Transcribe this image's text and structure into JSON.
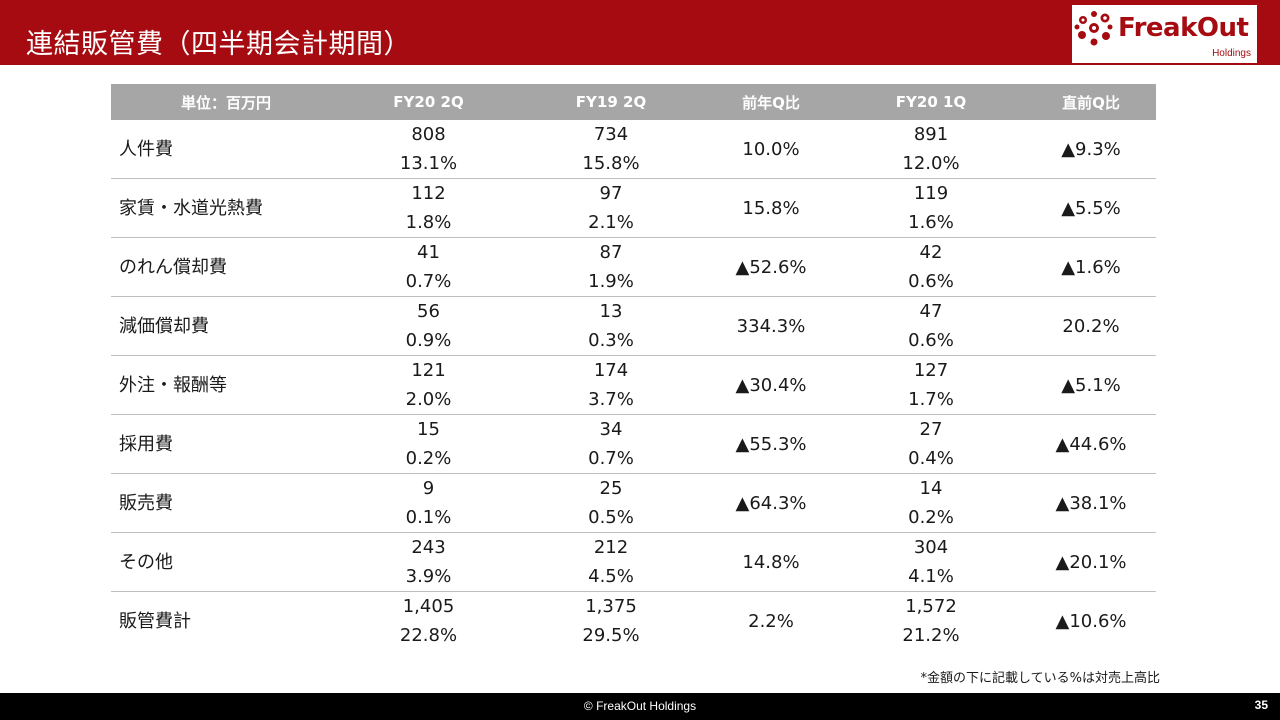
{
  "slide": {
    "title": "連結販管費（四半期会計期間）",
    "logo_text": "FreakOut",
    "logo_sub": "Holdings",
    "note": "*金額の下に記載している%は対売上高比",
    "copyright": "© FreakOut Holdings",
    "page_number": "35"
  },
  "colors": {
    "header_bg": "#a50b10",
    "table_header_bg": "#a6a6a6",
    "footer_bg": "#000000"
  },
  "table": {
    "headers": [
      "単位：百万円",
      "FY20 2Q",
      "FY19 2Q",
      "前年Q比",
      "FY20 1Q",
      "直前Q比"
    ],
    "rows": [
      {
        "label": "人件費",
        "fy20_2q": {
          "value": "808",
          "pct": "13.1%"
        },
        "fy19_2q": {
          "value": "734",
          "pct": "15.8%"
        },
        "yoy": "10.0%",
        "fy20_1q": {
          "value": "891",
          "pct": "12.0%"
        },
        "qoq": "▲9.3%"
      },
      {
        "label": "家賃・水道光熱費",
        "fy20_2q": {
          "value": "112",
          "pct": "1.8%"
        },
        "fy19_2q": {
          "value": "97",
          "pct": "2.1%"
        },
        "yoy": "15.8%",
        "fy20_1q": {
          "value": "119",
          "pct": "1.6%"
        },
        "qoq": "▲5.5%"
      },
      {
        "label": "のれん償却費",
        "fy20_2q": {
          "value": "41",
          "pct": "0.7%"
        },
        "fy19_2q": {
          "value": "87",
          "pct": "1.9%"
        },
        "yoy": "▲52.6%",
        "fy20_1q": {
          "value": "42",
          "pct": "0.6%"
        },
        "qoq": "▲1.6%"
      },
      {
        "label": "減価償却費",
        "fy20_2q": {
          "value": "56",
          "pct": "0.9%"
        },
        "fy19_2q": {
          "value": "13",
          "pct": "0.3%"
        },
        "yoy": "334.3%",
        "fy20_1q": {
          "value": "47",
          "pct": "0.6%"
        },
        "qoq": "20.2%"
      },
      {
        "label": "外注・報酬等",
        "fy20_2q": {
          "value": "121",
          "pct": "2.0%"
        },
        "fy19_2q": {
          "value": "174",
          "pct": "3.7%"
        },
        "yoy": "▲30.4%",
        "fy20_1q": {
          "value": "127",
          "pct": "1.7%"
        },
        "qoq": "▲5.1%"
      },
      {
        "label": "採用費",
        "fy20_2q": {
          "value": "15",
          "pct": "0.2%"
        },
        "fy19_2q": {
          "value": "34",
          "pct": "0.7%"
        },
        "yoy": "▲55.3%",
        "fy20_1q": {
          "value": "27",
          "pct": "0.4%"
        },
        "qoq": "▲44.6%"
      },
      {
        "label": "販売費",
        "fy20_2q": {
          "value": "9",
          "pct": "0.1%"
        },
        "fy19_2q": {
          "value": "25",
          "pct": "0.5%"
        },
        "yoy": "▲64.3%",
        "fy20_1q": {
          "value": "14",
          "pct": "0.2%"
        },
        "qoq": "▲38.1%"
      },
      {
        "label": "その他",
        "fy20_2q": {
          "value": "243",
          "pct": "3.9%"
        },
        "fy19_2q": {
          "value": "212",
          "pct": "4.5%"
        },
        "yoy": "14.8%",
        "fy20_1q": {
          "value": "304",
          "pct": "4.1%"
        },
        "qoq": "▲20.1%"
      },
      {
        "label": "販管費計",
        "fy20_2q": {
          "value": "1,405",
          "pct": "22.8%"
        },
        "fy19_2q": {
          "value": "1,375",
          "pct": "29.5%"
        },
        "yoy": "2.2%",
        "fy20_1q": {
          "value": "1,572",
          "pct": "21.2%"
        },
        "qoq": "▲10.6%"
      }
    ]
  }
}
